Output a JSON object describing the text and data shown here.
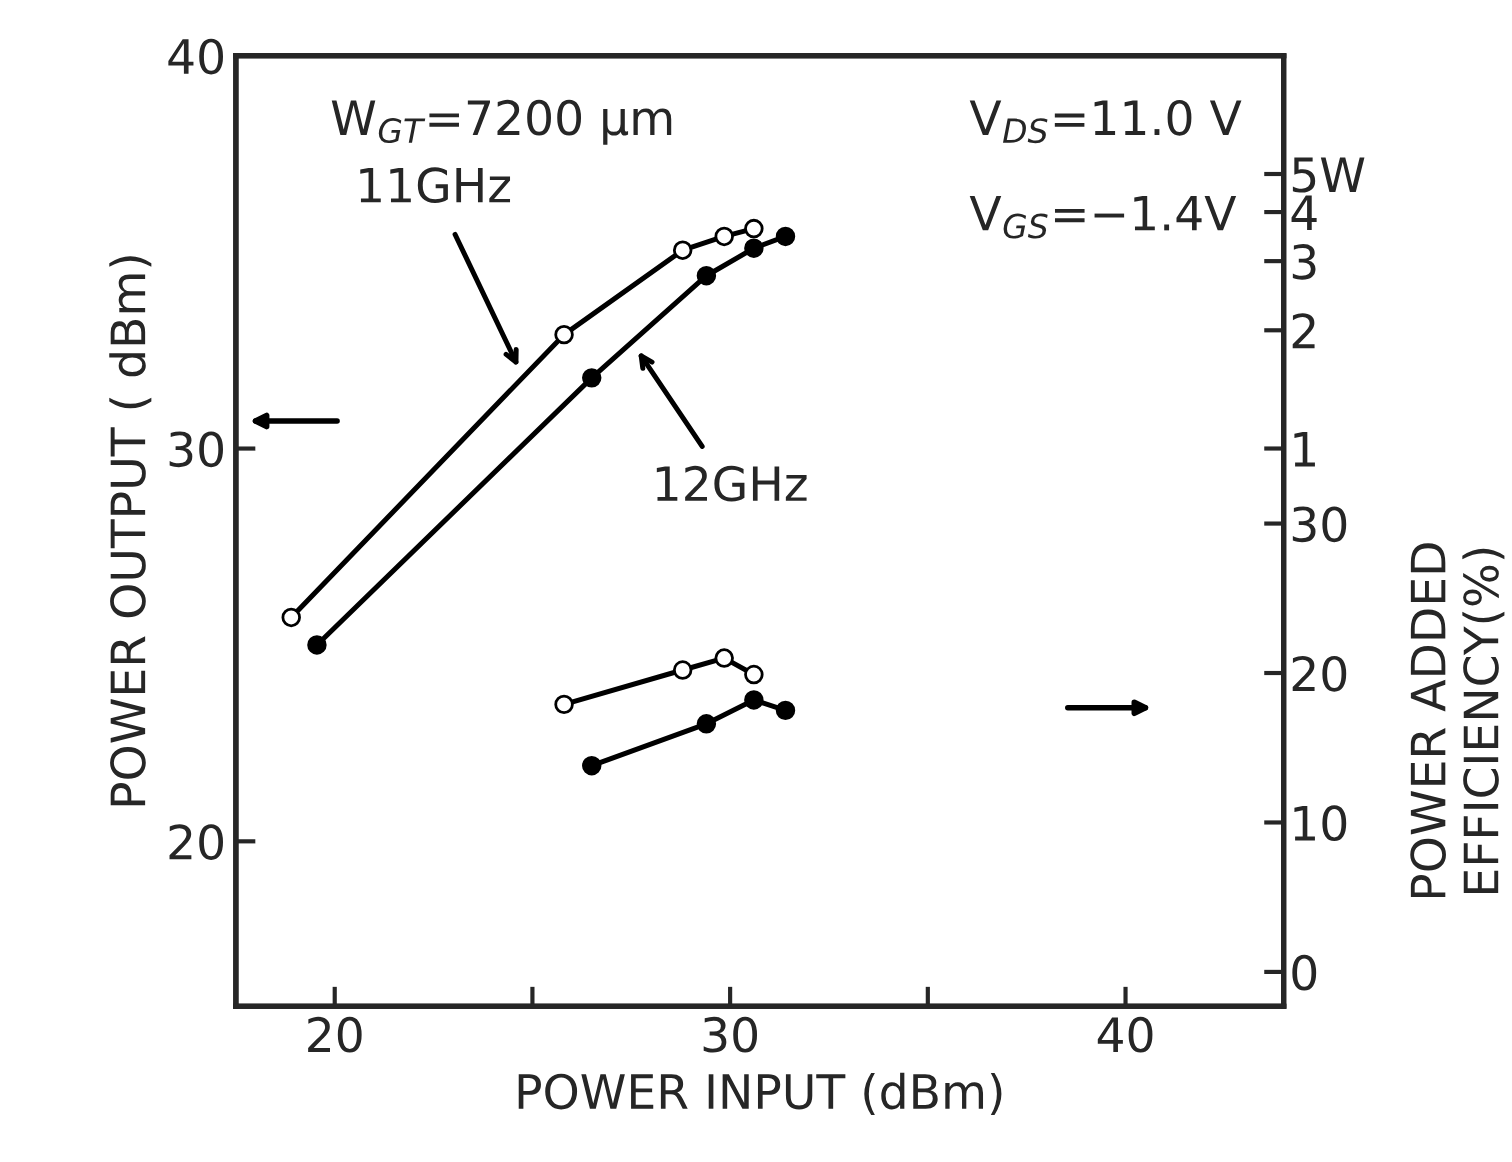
{
  "chart_data": {
    "type": "line",
    "xlabel": "POWER INPUT (dBm)",
    "ylabel": "POWER OUTPUT ( dBm)",
    "y3label": "POWER ADDED\nEFFICIENCY(%)",
    "series": [
      {
        "name": "11GHz",
        "color": "#000000",
        "x": [
          18.9,
          25.8,
          28.8,
          29.85,
          30.6
        ],
        "values": [
          25.7,
          32.9,
          35.05,
          35.4,
          35.6
        ]
      },
      {
        "name": "12GHz",
        "color": "#000000",
        "x": [
          19.55,
          26.5,
          29.4,
          30.6,
          31.4
        ],
        "values": [
          25.0,
          31.8,
          34.4,
          35.1,
          35.4
        ]
      },
      {
        "color": "#000000",
        "axis": "y3",
        "x": [
          25.8,
          28.8,
          29.85,
          30.6
        ],
        "values": [
          17.9,
          20.2,
          21.0,
          19.9
        ]
      },
      {
        "color": "#000000",
        "axis": "y3",
        "x": [
          26.5,
          29.4,
          30.6,
          31.4
        ],
        "values": [
          13.8,
          16.6,
          18.2,
          17.5
        ]
      }
    ],
    "xlim": [
      17.5,
      44
    ],
    "xticks": [
      20,
      {
        "value": 25,
        "label": null
      },
      30,
      {
        "value": 35,
        "label": null
      },
      40
    ],
    "ylim": [
      15.8,
      40
    ],
    "yticks": [
      20,
      30,
      40
    ],
    "y2lim": [
      0.038,
      10
    ],
    "y2ticks": [
      1,
      2,
      3,
      4,
      {
        "value": 5,
        "label": "5W"
      }
    ],
    "log": "y2",
    "y3lim": [
      -2.3,
      61.3
    ],
    "y3ticks": [
      0,
      10,
      20,
      30
    ],
    "annotations": [
      "W$_{GT}$=7200 µm",
      "V$_{DS}$=11.0 V",
      "V$_{GS}$=−1.4V"
    ],
    "marker": "circle",
    "line_style": "solid",
    "grid": false
  }
}
